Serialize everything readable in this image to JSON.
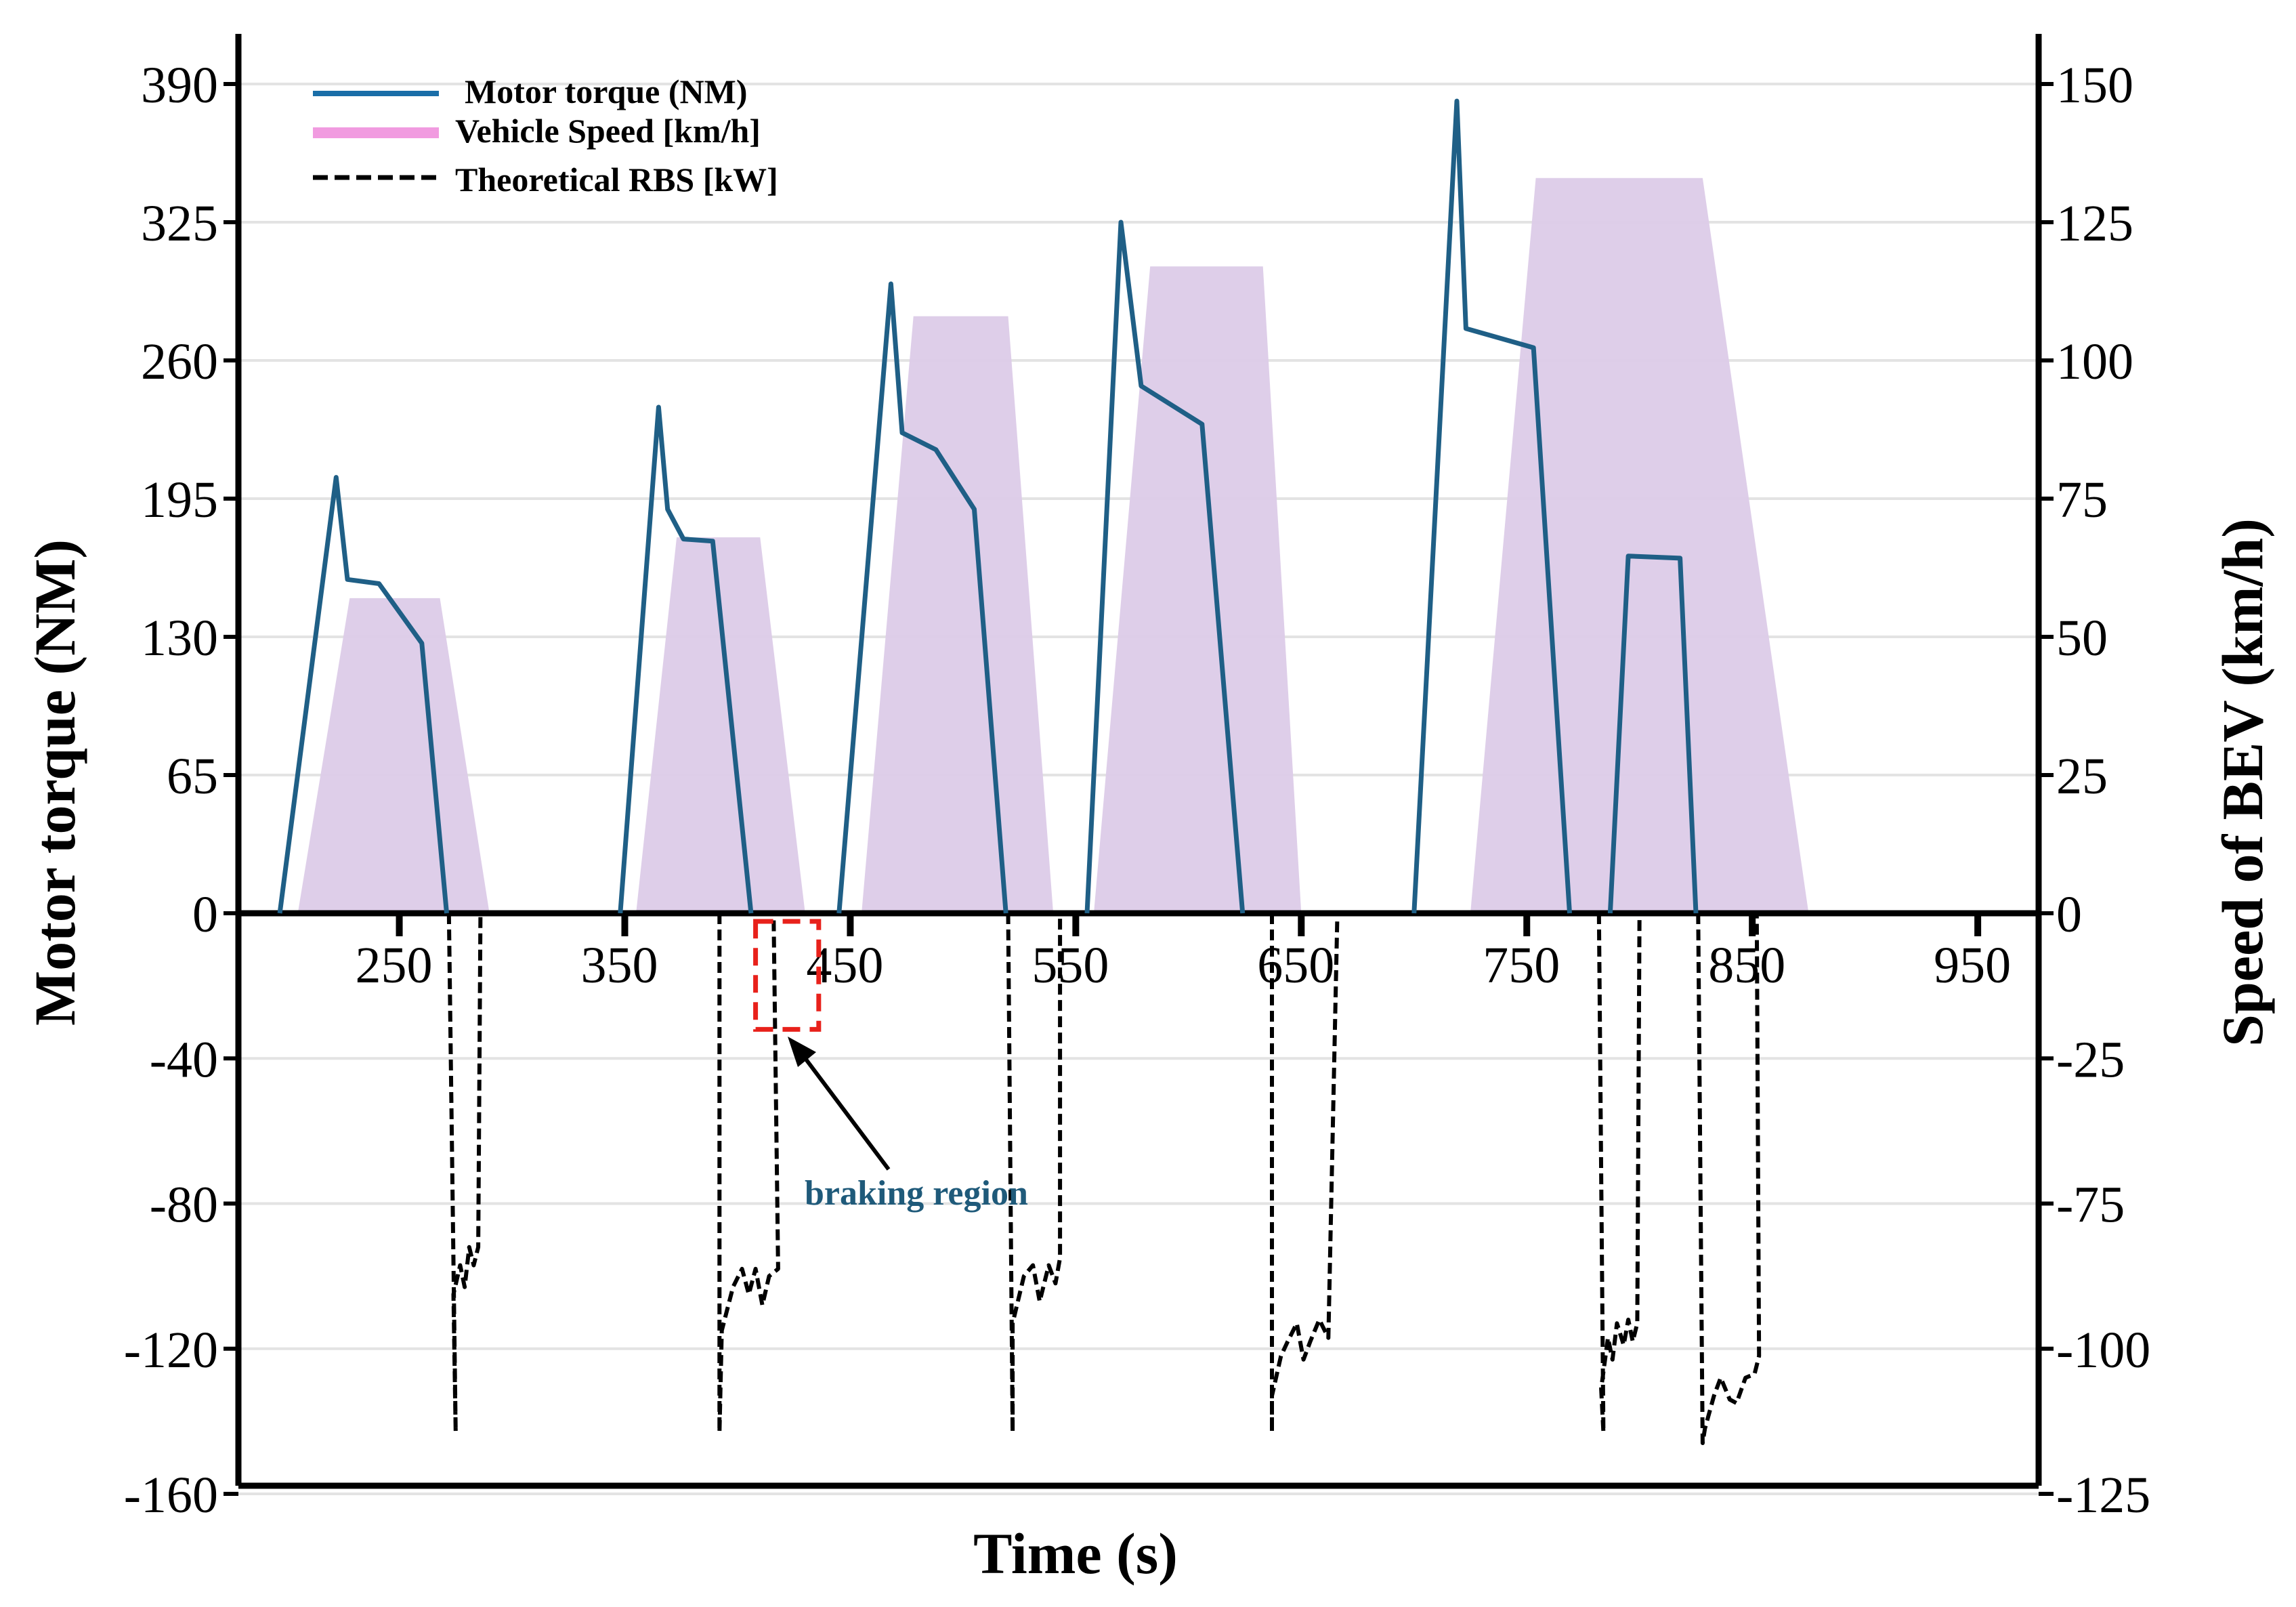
{
  "chart_data": {
    "type": "line",
    "title": "",
    "xlabel": "Time (s)",
    "ylabel_left": "Motor torque (NM)",
    "ylabel_right": "Speed of BEV (km/h)",
    "x_ticks": [
      250,
      350,
      450,
      550,
      650,
      750,
      850,
      950
    ],
    "x_tick_labels": [
      "250",
      "350",
      "450",
      "550",
      "650",
      "750",
      "850",
      "950"
    ],
    "y_left_ticks": [
      390,
      325,
      260,
      195,
      130,
      65,
      0,
      -40,
      -80,
      -120,
      -160
    ],
    "y_left_tick_labels": [
      "390",
      "325",
      "260",
      "195",
      "130",
      "65",
      "0",
      "-40",
      "-80",
      "-120",
      "-160"
    ],
    "y_right_ticks": [
      150,
      125,
      100,
      75,
      50,
      25,
      0,
      -25,
      -75,
      -100,
      -125
    ],
    "y_right_tick_labels": [
      "150",
      "125",
      "100",
      "75",
      "50",
      "25",
      "0",
      "-25",
      "-75",
      "-100",
      "-125"
    ],
    "y_left_break": {
      "torque_positive_max": 390,
      "torque_negative_min": -160
    },
    "legend": [
      {
        "name": "Motor torque (NM)",
        "color": "#1a6ea8",
        "style": "solid"
      },
      {
        "name": "Vehicle Speed [km/h]",
        "color": "#f19be0",
        "style": "solid-thick"
      },
      {
        "name": "Theoretical RBS [kW]",
        "color": "#000000",
        "style": "dashed"
      }
    ],
    "annotation": {
      "text": "braking region",
      "box_x": [
        408,
        436
      ],
      "box_y": [
        0,
        -32
      ]
    },
    "series": [
      {
        "name": "Vehicle Speed [km/h]",
        "kind": "area",
        "color": "#dccbe8",
        "axis": "right",
        "segments": [
          [
            [
              205,
              0
            ],
            [
              228,
              57
            ],
            [
              268,
              57
            ],
            [
              290,
              0
            ]
          ],
          [
            [
              355,
              0
            ],
            [
              373,
              68
            ],
            [
              410,
              68
            ],
            [
              430,
              0
            ]
          ],
          [
            [
              455,
              0
            ],
            [
              478,
              108
            ],
            [
              520,
              108
            ],
            [
              540,
              0
            ]
          ],
          [
            [
              558,
              0
            ],
            [
              583,
              117
            ],
            [
              633,
              117
            ],
            [
              650,
              0
            ]
          ],
          [
            [
              725,
              0
            ],
            [
              754,
              133
            ],
            [
              828,
              133
            ],
            [
              875,
              0
            ]
          ]
        ]
      },
      {
        "name": "Motor torque (NM)",
        "kind": "line",
        "color": "#1f5f86",
        "axis": "left",
        "segments": [
          [
            [
              197,
              0
            ],
            [
              222,
              205
            ],
            [
              227,
              157
            ],
            [
              241,
              155
            ],
            [
              260,
              127
            ],
            [
              271,
              0
            ]
          ],
          [
            [
              348,
              0
            ],
            [
              365,
              238
            ],
            [
              369,
              190
            ],
            [
              376,
              176
            ],
            [
              389,
              175
            ],
            [
              406,
              0
            ]
          ],
          [
            [
              445,
              0
            ],
            [
              468,
              296
            ],
            [
              473,
              226
            ],
            [
              488,
              218
            ],
            [
              505,
              190
            ],
            [
              519,
              0
            ]
          ],
          [
            [
              555,
              0
            ],
            [
              570,
              325
            ],
            [
              579,
              248
            ],
            [
              606,
              230
            ],
            [
              624,
              0
            ]
          ],
          [
            [
              700,
              0
            ],
            [
              719,
              382
            ],
            [
              723,
              275
            ],
            [
              753,
              266
            ],
            [
              769,
              0
            ]
          ],
          [
            [
              787,
              0
            ],
            [
              795,
              168
            ],
            [
              818,
              167
            ],
            [
              825,
              0
            ]
          ]
        ]
      },
      {
        "name": "Theoretical RBS [kW]",
        "kind": "line",
        "color": "#000000",
        "axis": "left",
        "segments": [
          [
            [
              272,
              0
            ],
            [
              275,
              -143
            ],
            [
              274,
              -105
            ],
            [
              277,
              -97
            ],
            [
              279,
              -103
            ],
            [
              281,
              -92
            ],
            [
              283,
              -97
            ],
            [
              285,
              -92
            ],
            [
              286,
              0
            ]
          ],
          [
            [
              392,
              0
            ],
            [
              392,
              -143
            ],
            [
              393,
              -115
            ],
            [
              398,
              -103
            ],
            [
              402,
              -98
            ],
            [
              405,
              -105
            ],
            [
              408,
              -98
            ],
            [
              411,
              -108
            ],
            [
              414,
              -100
            ],
            [
              418,
              -98
            ],
            [
              416,
              0
            ]
          ],
          [
            [
              520,
              0
            ],
            [
              522,
              -143
            ],
            [
              522,
              -113
            ],
            [
              527,
              -100
            ],
            [
              531,
              -97
            ],
            [
              534,
              -107
            ],
            [
              538,
              -97
            ],
            [
              541,
              -102
            ],
            [
              543,
              -95
            ],
            [
              543,
              0
            ]
          ],
          [
            [
              637,
              0
            ],
            [
              637,
              -143
            ],
            [
              637,
              -133
            ],
            [
              641,
              -122
            ],
            [
              644,
              -118
            ],
            [
              648,
              -113
            ],
            [
              651,
              -123
            ],
            [
              654,
              -118
            ],
            [
              658,
              -112
            ],
            [
              662,
              -117
            ],
            [
              666,
              0
            ]
          ],
          [
            [
              782,
              0
            ],
            [
              784,
              -143
            ],
            [
              783,
              -131
            ],
            [
              786,
              -117
            ],
            [
              788,
              -123
            ],
            [
              790,
              -113
            ],
            [
              793,
              -119
            ],
            [
              795,
              -112
            ],
            [
              797,
              -118
            ],
            [
              799,
              -113
            ],
            [
              800,
              0
            ]
          ],
          [
            [
              826,
              0
            ],
            [
              828,
              -146
            ],
            [
              829,
              -142
            ],
            [
              833,
              -133
            ],
            [
              836,
              -128
            ],
            [
              840,
              -134
            ],
            [
              843,
              -135
            ],
            [
              847,
              -128
            ],
            [
              851,
              -127
            ],
            [
              853,
              -122
            ],
            [
              852,
              0
            ]
          ]
        ]
      }
    ]
  }
}
